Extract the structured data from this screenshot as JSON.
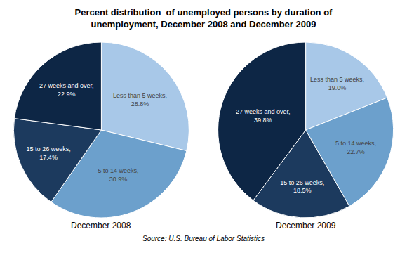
{
  "title": "Percent distribution  of unemployed persons by duration of\nunemployment, December 2008 and December 2009",
  "annotations": [
    "Source: U.S. Bureau of Labor Statistics"
  ],
  "chart_data": [
    {
      "type": "pie",
      "title": "December 2008",
      "categories": [
        "Less than 5 weeks",
        "5 to 14 weeks",
        "15 to 26 weeks",
        "27 weeks and over"
      ],
      "values": [
        28.8,
        30.9,
        17.4,
        22.9
      ],
      "value_labels": [
        "Less than 5 weeks,\n28.8%",
        "5 to 14 weeks,\n30.9%",
        "15 to 26 weeks,\n17.4%",
        "27 weeks and over,\n22.9%"
      ],
      "data_labels": true,
      "colors": [
        "#A8C8E8",
        "#6CA0CC",
        "#1C3A5E",
        "#0D2645"
      ]
    },
    {
      "type": "pie",
      "title": "December 2009",
      "categories": [
        "Less than 5 weeks",
        "5 to 14 weeks",
        "15 to 26 weeks",
        "27 weeks and over"
      ],
      "values": [
        19.0,
        22.7,
        18.5,
        39.8
      ],
      "value_labels": [
        "Less than 5 weeks,\n19.0%",
        "5 to 14 weeks,\n22.7%",
        "15 to 26 weeks,\n18.5%",
        "27 weeks and over,\n39.8%"
      ],
      "data_labels": true,
      "colors": [
        "#A8C8E8",
        "#6CA0CC",
        "#1C3A5E",
        "#0D2645"
      ]
    }
  ]
}
